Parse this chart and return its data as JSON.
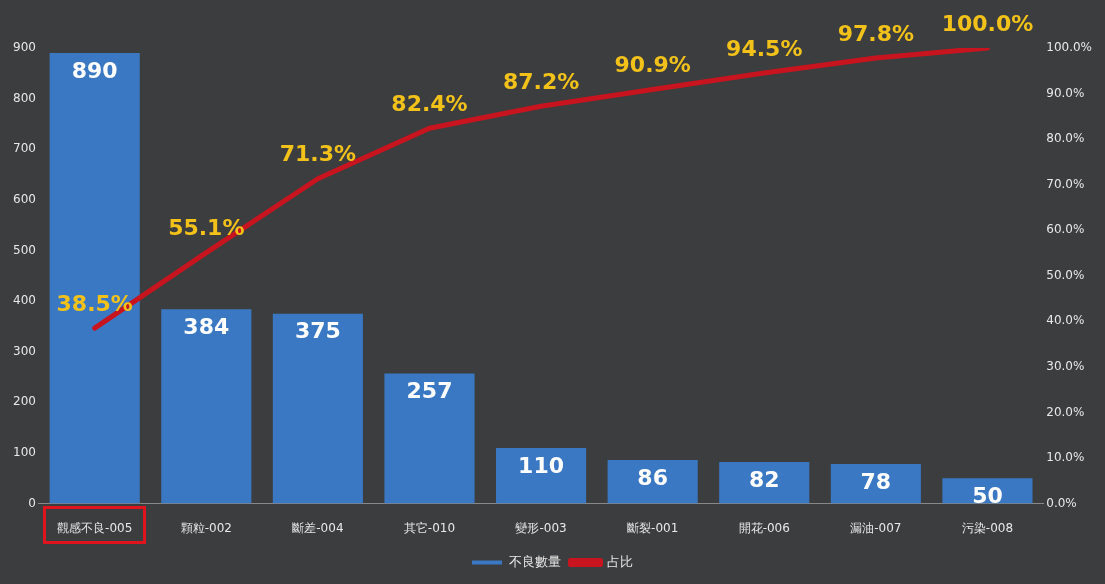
{
  "chart_data": {
    "type": "bar",
    "categories": [
      "觀感不良-005",
      "顆粒-002",
      "斷差-004",
      "其它-010",
      "變形-003",
      "斷裂-001",
      "開花-006",
      "漏油-007",
      "污染-008"
    ],
    "series": [
      {
        "name": "不良數量",
        "color": "#3b78c4",
        "values": [
          890,
          384,
          375,
          257,
          110,
          86,
          82,
          78,
          50
        ]
      },
      {
        "name": "占比",
        "type": "line",
        "axis": "y2",
        "color": "#c8141e",
        "values": [
          38.5,
          55.1,
          71.3,
          82.4,
          87.2,
          90.9,
          94.5,
          97.8,
          100.0
        ],
        "value_labels": [
          "38.5%",
          "55.1%",
          "71.3%",
          "82.4%",
          "87.2%",
          "90.9%",
          "94.5%",
          "97.8%",
          "100.0%"
        ]
      }
    ],
    "ylim": [
      0,
      900
    ],
    "yticks": [
      0,
      100,
      200,
      300,
      400,
      500,
      600,
      700,
      800,
      900
    ],
    "y2lim": [
      0,
      100
    ],
    "y2ticks": [
      {
        "value": 0,
        "label": "0.0%"
      },
      {
        "value": 10,
        "label": "10.0%"
      },
      {
        "value": 20,
        "label": "20.0%"
      },
      {
        "value": 30,
        "label": "30.0%"
      },
      {
        "value": 40,
        "label": "40.0%"
      },
      {
        "value": 50,
        "label": "50.0%"
      },
      {
        "value": 60,
        "label": "60.0%"
      },
      {
        "value": 70,
        "label": "70.0%"
      },
      {
        "value": 80,
        "label": "80.0%"
      },
      {
        "value": 90,
        "label": "90.0%"
      },
      {
        "value": 100,
        "label": "100.0%"
      }
    ],
    "data_labels": true,
    "legend": "bottom",
    "marker": "none"
  }
}
